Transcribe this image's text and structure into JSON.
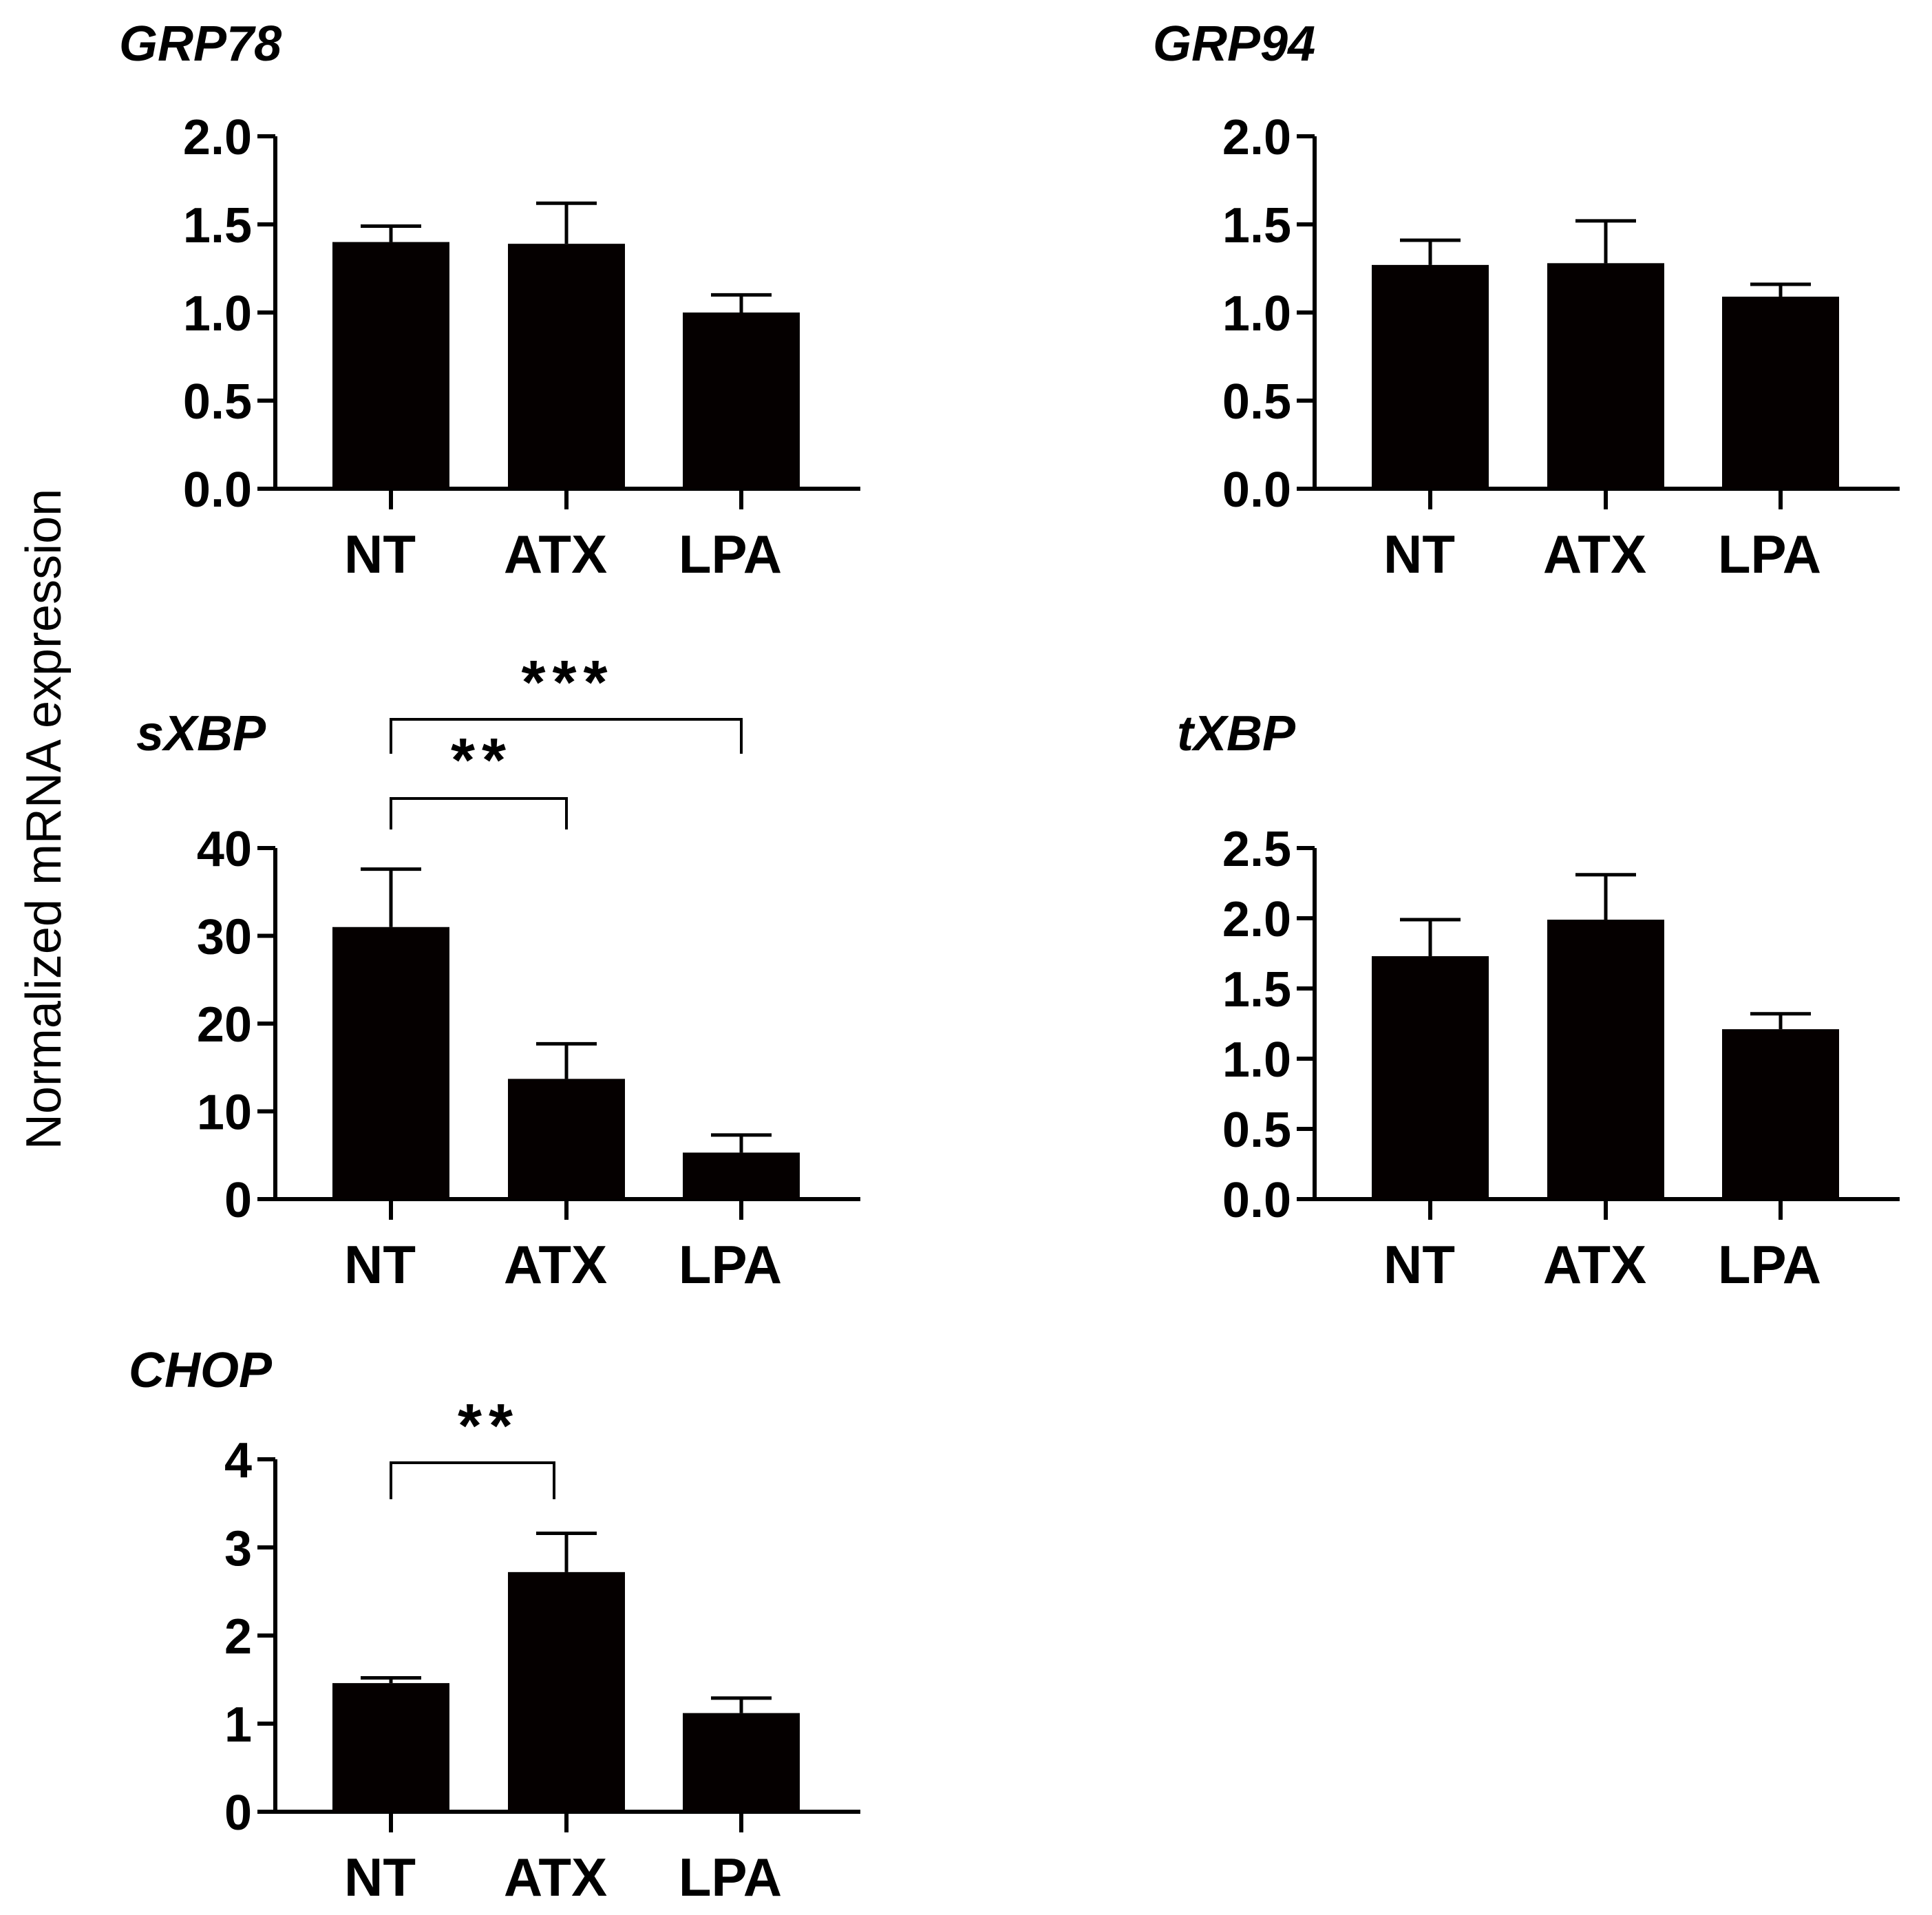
{
  "chart_data": [
    {
      "type": "bar",
      "title": "GRP78",
      "ylabel": "Normalized mRNA expression",
      "categories": [
        "NT",
        "ATX",
        "LPA"
      ],
      "values": [
        1.4,
        1.39,
        1.0
      ],
      "errors": [
        0.09,
        0.23,
        0.1
      ],
      "ylim": [
        0,
        2.0
      ],
      "yticks": [
        "0.0",
        "0.5",
        "1.0",
        "1.5",
        "2.0"
      ],
      "significance": []
    },
    {
      "type": "bar",
      "title": "GRP94",
      "ylabel": "Normalized mRNA expression",
      "categories": [
        "NT",
        "ATX",
        "LPA"
      ],
      "values": [
        1.27,
        1.28,
        1.09
      ],
      "errors": [
        0.14,
        0.24,
        0.07
      ],
      "ylim": [
        0,
        2.0
      ],
      "yticks": [
        "0.0",
        "0.5",
        "1.0",
        "1.5",
        "2.0"
      ],
      "significance": []
    },
    {
      "type": "bar",
      "title": "sXBP",
      "ylabel": "Normalized mRNA expression",
      "categories": [
        "NT",
        "ATX",
        "LPA"
      ],
      "values": [
        31.0,
        13.7,
        5.3
      ],
      "errors": [
        6.6,
        4.0,
        2.0
      ],
      "ylim": [
        0,
        40
      ],
      "yticks": [
        "0",
        "10",
        "20",
        "30",
        "40"
      ],
      "significance": [
        {
          "from": "NT",
          "to": "ATX",
          "label": "**"
        },
        {
          "from": "NT",
          "to": "LPA",
          "label": "***"
        }
      ]
    },
    {
      "type": "bar",
      "title": "tXBP",
      "ylabel": "Normalized mRNA expression",
      "categories": [
        "NT",
        "ATX",
        "LPA"
      ],
      "values": [
        1.73,
        1.99,
        1.21
      ],
      "errors": [
        0.26,
        0.32,
        0.11
      ],
      "ylim": [
        0,
        2.5
      ],
      "yticks": [
        "0.0",
        "0.5",
        "1.0",
        "1.5",
        "2.0",
        "2.5"
      ],
      "significance": []
    },
    {
      "type": "bar",
      "title": "CHOP",
      "ylabel": "Normalized mRNA expression",
      "categories": [
        "NT",
        "ATX",
        "LPA"
      ],
      "values": [
        1.46,
        2.72,
        1.12
      ],
      "errors": [
        0.06,
        0.44,
        0.17
      ],
      "ylim": [
        0,
        4
      ],
      "yticks": [
        "0",
        "1",
        "2",
        "3",
        "4"
      ],
      "significance": [
        {
          "from": "NT",
          "to": "ATX",
          "label": "**"
        }
      ]
    }
  ],
  "shared_ylabel": "Normalized mRNA expression"
}
